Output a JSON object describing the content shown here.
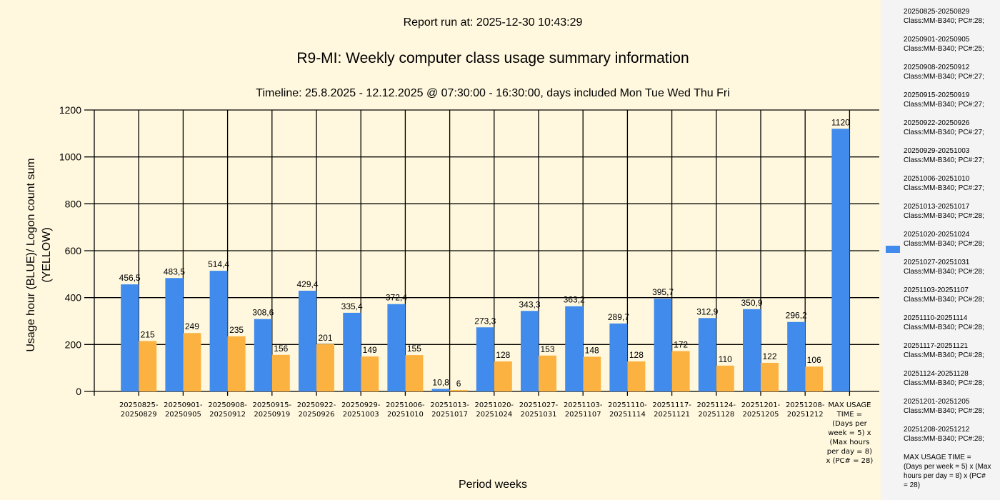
{
  "header": {
    "run": "Report run at: 2025-12-30 10:43:29",
    "title": "R9-MI: Weekly computer class usage summary information",
    "timeline": "Timeline:  25.8.2025  - 12.12.2025  @  07:30:00 -  16:30:00, days included Mon Tue Wed Thu Fri"
  },
  "chart_data": {
    "type": "bar",
    "title": "R9-MI: Weekly computer class usage summary information",
    "xlabel": "Period weeks",
    "ylabel": "Usage hour (BLUE)/ Logon count sum (YELLOW)",
    "ylim": [
      0,
      1200
    ],
    "yticks": [
      "0",
      "200",
      "400",
      "600",
      "800",
      "1000",
      "1200"
    ],
    "grid": true,
    "categories": [
      "20250825-\n20250829",
      "20250901-\n20250905",
      "20250908-\n20250912",
      "20250915-\n20250919",
      "20250922-\n20250926",
      "20250929-\n20251003",
      "20251006-\n20251010",
      "20251013-\n20251017",
      "20251020-\n20251024",
      "20251027-\n20251031",
      "20251103-\n20251107",
      "20251110-\n20251114",
      "20251117-\n20251121",
      "20251124-\n20251128",
      "20251201-\n20251205",
      "20251208-\n20251212",
      "MAX USAGE\nTIME =\n(Days per\nweek = 5) x\n(Max hours\nper day = 8)\nx (PC# = 28)"
    ],
    "series": [
      {
        "name": "Usage hour",
        "color": "#418bed",
        "values": [
          456.5,
          483.5,
          514.4,
          308.6,
          429.4,
          335.4,
          372.4,
          10.8,
          273.3,
          343.3,
          363.2,
          289.7,
          395.7,
          312.9,
          350.9,
          296.2,
          1120
        ],
        "labels": [
          "456,5",
          "483,5",
          "514,4",
          "308,6",
          "429,4",
          "335,4",
          "372,4",
          "10,8",
          "273,3",
          "343,3",
          "363,2",
          "289,7",
          "395,7",
          "312,9",
          "350,9",
          "296,2",
          "1120"
        ]
      },
      {
        "name": "Logon count sum",
        "color": "#fbb241",
        "values": [
          215,
          249,
          235,
          156,
          201,
          149,
          155,
          6,
          128,
          153,
          148,
          128,
          172,
          110,
          122,
          106,
          null
        ],
        "labels": [
          "215",
          "249",
          "235",
          "156",
          "201",
          "149",
          "155",
          "6",
          "128",
          "153",
          "148",
          "128",
          "172",
          "110",
          "122",
          "106",
          ""
        ]
      }
    ],
    "legend_placement": "right",
    "legend": [
      "20250825-20250829\nClass:MM-B340; PC#:28;",
      "20250901-20250905\nClass:MM-B340; PC#:25;",
      "20250908-20250912\nClass:MM-B340; PC#:27;",
      "20250915-20250919\nClass:MM-B340; PC#:27;",
      "20250922-20250926\nClass:MM-B340; PC#:27;",
      "20250929-20251003\nClass:MM-B340; PC#:27;",
      "20251006-20251010\nClass:MM-B340; PC#:27;",
      "20251013-20251017\nClass:MM-B340; PC#:28;",
      "20251020-20251024\nClass:MM-B340; PC#:28;",
      "20251027-20251031\nClass:MM-B340; PC#:28;",
      "20251103-20251107\nClass:MM-B340; PC#:28;",
      "20251110-20251114\nClass:MM-B340; PC#:28;",
      "20251117-20251121\nClass:MM-B340; PC#:28;",
      "20251124-20251128\nClass:MM-B340; PC#:28;",
      "20251201-20251205\nClass:MM-B340; PC#:28;",
      "20251208-20251212\nClass:MM-B340; PC#:28;",
      "MAX USAGE TIME =\n (Days per week = 5) x (Max\nhours per day = 8) x (PC#\n= 28)"
    ]
  }
}
